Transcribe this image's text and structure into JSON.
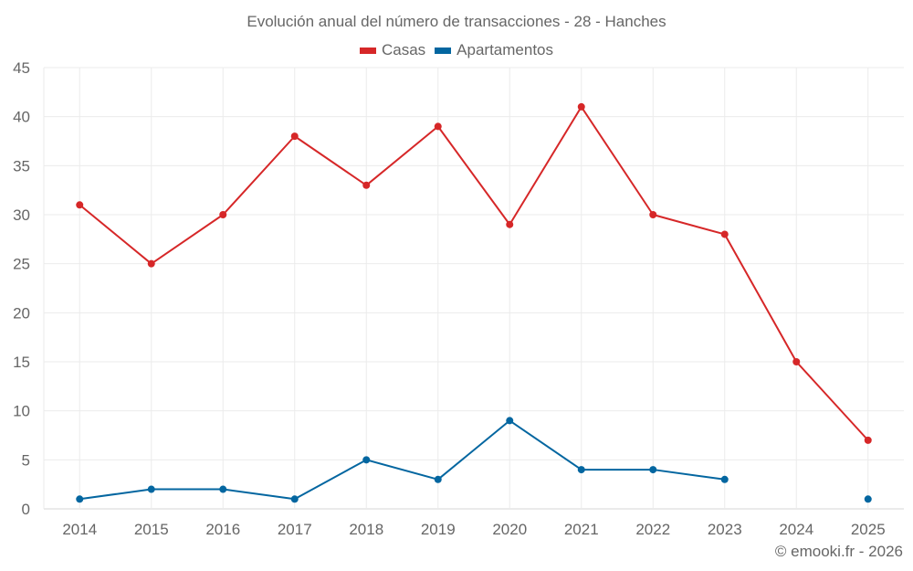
{
  "title": "Evolución anual del número de transacciones - 28 - Hanches",
  "legend": [
    {
      "label": "Casas",
      "color": "#d62728"
    },
    {
      "label": "Apartamentos",
      "color": "#0366a0"
    }
  ],
  "credit": "© emooki.fr - 2026",
  "chart_data": {
    "type": "line",
    "title": "Evolución anual del número de transacciones - 28 - Hanches",
    "xlabel": "",
    "ylabel": "",
    "x": [
      "2014",
      "2015",
      "2016",
      "2017",
      "2018",
      "2019",
      "2020",
      "2021",
      "2022",
      "2023",
      "2024",
      "2025"
    ],
    "series": [
      {
        "name": "Casas",
        "color": "#d62728",
        "values": [
          31,
          25,
          30,
          38,
          33,
          39,
          29,
          41,
          30,
          28,
          15,
          7
        ]
      },
      {
        "name": "Apartamentos",
        "color": "#0366a0",
        "values": [
          1,
          2,
          2,
          1,
          5,
          3,
          9,
          4,
          4,
          3,
          null,
          1
        ]
      }
    ],
    "ylim": [
      0,
      45
    ],
    "yticks": [
      0,
      5,
      10,
      15,
      20,
      25,
      30,
      35,
      40,
      45
    ],
    "grid": true,
    "legend_position": "top-center"
  }
}
